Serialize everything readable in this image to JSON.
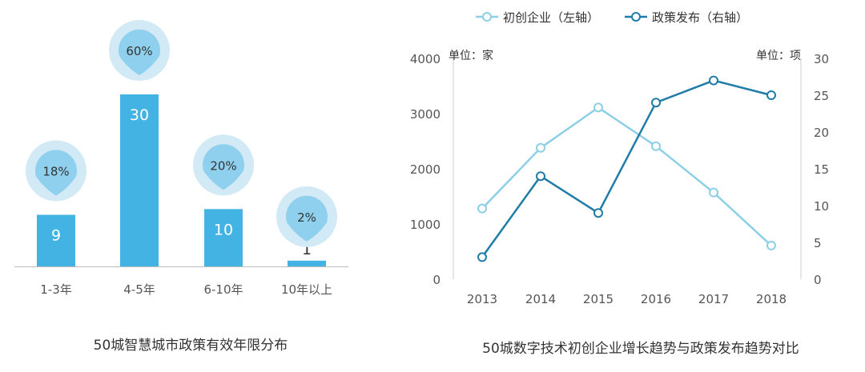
{
  "chart_data": [
    {
      "type": "bar",
      "title": "50城智慧城市政策有效年限分布",
      "categories": [
        "1-3年",
        "4-5年",
        "6-10年",
        "10年以上"
      ],
      "values": [
        9,
        30,
        10,
        1
      ],
      "percent_labels": [
        "18%",
        "60%",
        "20%",
        "2%"
      ],
      "ylim": [
        0,
        30
      ],
      "grid": false,
      "colors": {
        "bar": "#43b3e4",
        "badge_outer": "#d2eaf6",
        "badge_inner": "#8fd0ef"
      }
    },
    {
      "type": "line",
      "title": "50城数字技术初创企业增长趋势与政策发布趋势对比",
      "x": [
        "2013",
        "2014",
        "2015",
        "2016",
        "2017",
        "2018"
      ],
      "left_unit_label": "单位：家",
      "right_unit_label": "单位：项",
      "ylim_left": [
        0,
        4000
      ],
      "yticks_left": [
        "0",
        "1000",
        "2000",
        "3000",
        "4000"
      ],
      "ylim_right": [
        0,
        30
      ],
      "yticks_right": [
        "0",
        "5",
        "10",
        "15",
        "20",
        "25",
        "30"
      ],
      "legend_position": "top",
      "grid": false,
      "series": [
        {
          "name": "初创企业（左轴）",
          "axis": "left",
          "values": [
            1280,
            2380,
            3110,
            2410,
            1570,
            610
          ],
          "color": "#8ccfe6"
        },
        {
          "name": "政策发布（右轴）",
          "axis": "right",
          "values": [
            3,
            14,
            9,
            24,
            27,
            25
          ],
          "color": "#1f7ca8"
        }
      ]
    }
  ]
}
